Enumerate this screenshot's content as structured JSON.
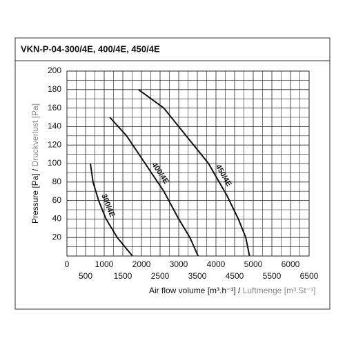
{
  "chart_data": {
    "type": "line",
    "title": "VKN-P-04-300/4E, 400/4E, 450/4E",
    "xlabel": {
      "main": "Air flow volume [m³.h⁻¹] /",
      "alt": "Luftmenge [m³.St⁻¹]"
    },
    "ylabel": {
      "main": "Pressure [Pa] /",
      "alt": "Druckverlust [Pa]"
    },
    "xlim": [
      0,
      6500
    ],
    "ylim": [
      0,
      200
    ],
    "xticks": [
      0,
      500,
      1000,
      1500,
      2000,
      2500,
      3000,
      3500,
      4000,
      4500,
      5000,
      5500,
      6000,
      6500
    ],
    "yticks": [
      20,
      40,
      60,
      80,
      100,
      120,
      140,
      160,
      180,
      200
    ],
    "grid": true,
    "color": "#111",
    "series": [
      {
        "name": "300/4E",
        "x": [
          630,
          700,
          850,
          1050,
          1350,
          1760
        ],
        "values": [
          100,
          80,
          60,
          40,
          20,
          0
        ]
      },
      {
        "name": "400/4E",
        "x": [
          1150,
          1600,
          2100,
          2600,
          3000,
          3300,
          3520
        ],
        "values": [
          150,
          130,
          100,
          70,
          40,
          20,
          0
        ]
      },
      {
        "name": "450/4E",
        "x": [
          1920,
          2600,
          3200,
          3800,
          4300,
          4600,
          4800,
          4900
        ],
        "values": [
          180,
          160,
          130,
          100,
          65,
          40,
          20,
          0
        ]
      }
    ]
  }
}
